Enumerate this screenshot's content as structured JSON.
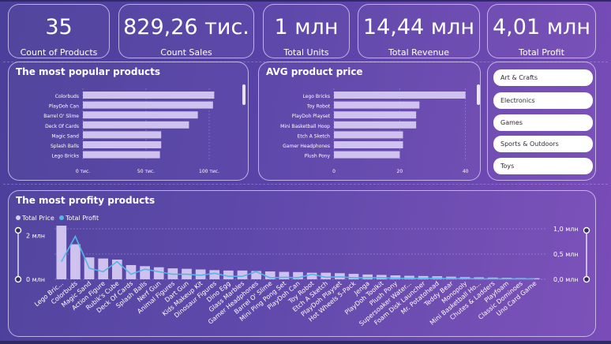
{
  "kpis": [
    {
      "value": "35",
      "label": "Count of Products"
    },
    {
      "value": "829,26 тис.",
      "label": "Count Sales"
    },
    {
      "value": "1 млн",
      "label": "Total Units"
    },
    {
      "value": "14,44 млн",
      "label": "Total Revenue"
    },
    {
      "value": "4,01 млн",
      "label": "Total Profit"
    }
  ],
  "popular": {
    "title": "The most popular products"
  },
  "avg": {
    "title": "AVG product price"
  },
  "profity": {
    "title": "The most profity products"
  },
  "slicer": {
    "items": [
      "Art & Crafts",
      "Electronics",
      "Games",
      "Sports & Outdoors",
      "Toys"
    ]
  },
  "colors": {
    "bar": "#cfc2ee",
    "profit_line": "#52b6e6",
    "price_dot": "#d9ccf6"
  },
  "chart_data": [
    {
      "type": "bar",
      "orientation": "horizontal",
      "title": "The most popular products",
      "categories": [
        "Colorbuds",
        "PlayDoh Can",
        "Barrel O' Slime",
        "Deck Of Cards",
        "Magic Sand",
        "Splash Balls",
        "Lego Bricks"
      ],
      "values": [
        104000,
        103000,
        91000,
        84000,
        62000,
        62000,
        61000
      ],
      "xlim": [
        0,
        125000
      ],
      "xticks": [
        0,
        50000,
        100000
      ],
      "xtick_labels": [
        "0 тис.",
        "50 тис.",
        "100 тис."
      ],
      "grid": true
    },
    {
      "type": "bar",
      "orientation": "horizontal",
      "title": "AVG product price",
      "categories": [
        "Lego Bricks",
        "Toy Robot",
        "PlayDoh Playset",
        "Mini Basketball Hoop",
        "Etch A Sketch",
        "Gamer Headphones",
        "Plush Pony"
      ],
      "values": [
        40,
        26,
        25,
        25,
        21,
        21,
        20
      ],
      "xlim": [
        0,
        42
      ],
      "xticks": [
        0,
        20,
        40
      ],
      "xtick_labels": [
        "0",
        "20",
        "40"
      ],
      "grid": true
    },
    {
      "type": "bar",
      "title": "The most profity products",
      "legend": "top-left",
      "categories": [
        "Lego Bric...",
        "Colorbuds",
        "Magic Sand",
        "Action Figure",
        "Rubik's Cube",
        "Deck Of Cards",
        "Splash Balls",
        "Nerf Gun",
        "Animal Figures",
        "Dart Gun",
        "Kids Makeup Kit",
        "Dinosaur Figures",
        "Dino Egg",
        "Glass Marbles",
        "Gamer Headphones",
        "Barrel O' Slime",
        "Mini Ping Pong Set",
        "PlayDoh Can",
        "Toy Robot",
        "Etch A Sketch",
        "PlayDoh Playset",
        "Hot Wheels 5-Pack",
        "Jenga",
        "PlayDoh Toolkit",
        "Plush Pony",
        "Supersoaker Water...",
        "Foam Disk Launcher",
        "Mr. Potatohead",
        "Teddy Bear",
        "Monopoly",
        "Mini Basketball Ho...",
        "Chutes & Ladders",
        "Playfoam",
        "Classic Dominoes",
        "Uno Card Game"
      ],
      "series": [
        {
          "name": "Total Price",
          "axis": "left",
          "values": [
            2.45,
            1.6,
            1.0,
            0.95,
            0.9,
            0.65,
            0.6,
            0.55,
            0.5,
            0.48,
            0.45,
            0.42,
            0.4,
            0.4,
            0.38,
            0.36,
            0.34,
            0.33,
            0.3,
            0.3,
            0.28,
            0.25,
            0.22,
            0.2,
            0.18,
            0.16,
            0.15,
            0.14,
            0.12,
            0.1,
            0.09,
            0.08,
            0.07,
            0.06,
            0.05
          ]
        },
        {
          "name": "Total Profit",
          "axis": "right",
          "values": [
            0.35,
            0.85,
            0.22,
            0.15,
            0.35,
            0.1,
            0.2,
            0.15,
            0.1,
            0.1,
            0.08,
            0.12,
            0.06,
            0.06,
            0.15,
            0.03,
            0.04,
            0.03,
            0.1,
            0.04,
            0.05,
            0.03,
            0.03,
            0.03,
            0.02,
            0.02,
            0.02,
            0.02,
            0.015,
            0.015,
            0.01,
            0.01,
            0.01,
            0.01,
            0.01
          ]
        }
      ],
      "ylim_left": [
        0,
        2.45
      ],
      "yticks_left": [
        0,
        2
      ],
      "ytick_labels_left": [
        "0 млн",
        "2 млн"
      ],
      "ylim_right": [
        0,
        1.0
      ],
      "yticks_right": [
        0,
        0.5,
        1.0
      ],
      "ytick_labels_right": [
        "0,0 млн",
        "0,5 млн",
        "1,0 млн"
      ]
    }
  ]
}
